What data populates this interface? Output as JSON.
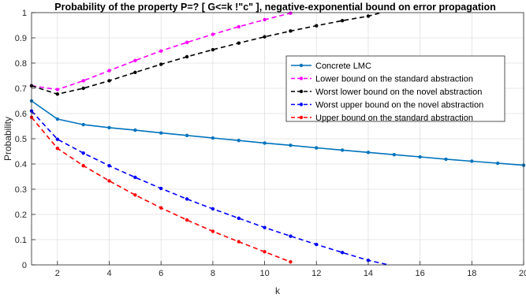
{
  "chart_data": {
    "type": "line",
    "title": "Probability of the property P=? [ G<=k !\"c\" ], negative-exponential bound on error propagation",
    "xlabel": "k",
    "ylabel": "Probability",
    "xlim": [
      1,
      20
    ],
    "ylim": [
      0,
      1
    ],
    "xticks": [
      "2",
      "4",
      "6",
      "8",
      "10",
      "12",
      "14",
      "16",
      "18",
      "20"
    ],
    "yticks": [
      "0",
      "0.1",
      "0.2",
      "0.3",
      "0.4",
      "0.5",
      "0.6",
      "0.7",
      "0.8",
      "0.9",
      "1"
    ],
    "grid": true,
    "legend_position": "right",
    "series": [
      {
        "name": "Concrete LMC",
        "color": "#0072bd",
        "style": "solid",
        "x": [
          1,
          2,
          3,
          4,
          5,
          6,
          7,
          8,
          9,
          10,
          11,
          12,
          13,
          14,
          15,
          16,
          17,
          18,
          19,
          20
        ],
        "values": [
          0.65,
          0.578,
          0.556,
          0.544,
          0.534,
          0.523,
          0.513,
          0.503,
          0.493,
          0.483,
          0.474,
          0.464,
          0.455,
          0.446,
          0.437,
          0.428,
          0.419,
          0.411,
          0.403,
          0.395
        ]
      },
      {
        "name": "Lower bound on the standard abstraction",
        "color": "#ff00ff",
        "style": "dashed",
        "x": [
          1,
          2,
          3,
          4,
          5,
          6,
          7,
          8,
          9,
          10,
          11
        ],
        "values": [
          0.71,
          0.695,
          0.73,
          0.77,
          0.81,
          0.848,
          0.882,
          0.914,
          0.944,
          0.972,
          0.998
        ]
      },
      {
        "name": "Worst lower bound on the novel abstraction",
        "color": "#000000",
        "style": "dashed",
        "x": [
          1,
          2,
          3,
          4,
          5,
          6,
          7,
          8,
          9,
          10,
          11,
          12,
          13,
          14,
          14.5
        ],
        "values": [
          0.71,
          0.677,
          0.7,
          0.73,
          0.763,
          0.795,
          0.825,
          0.853,
          0.879,
          0.904,
          0.927,
          0.948,
          0.968,
          0.986,
          1.0
        ]
      },
      {
        "name": "Worst upper bound on the novel abstraction",
        "color": "#0000ff",
        "style": "dashed",
        "x": [
          1,
          2,
          3,
          4,
          5,
          6,
          7,
          8,
          9,
          10,
          11,
          12,
          13,
          14,
          14.8
        ],
        "values": [
          0.61,
          0.498,
          0.443,
          0.393,
          0.347,
          0.303,
          0.261,
          0.222,
          0.185,
          0.148,
          0.114,
          0.081,
          0.049,
          0.018,
          0.0
        ]
      },
      {
        "name": "Upper bound on the standard abstraction",
        "color": "#ff0000",
        "style": "dashed",
        "x": [
          1,
          2,
          3,
          4,
          5,
          6,
          7,
          8,
          9,
          10,
          11
        ],
        "values": [
          0.585,
          0.462,
          0.393,
          0.333,
          0.277,
          0.226,
          0.178,
          0.133,
          0.092,
          0.052,
          0.012
        ]
      }
    ]
  }
}
